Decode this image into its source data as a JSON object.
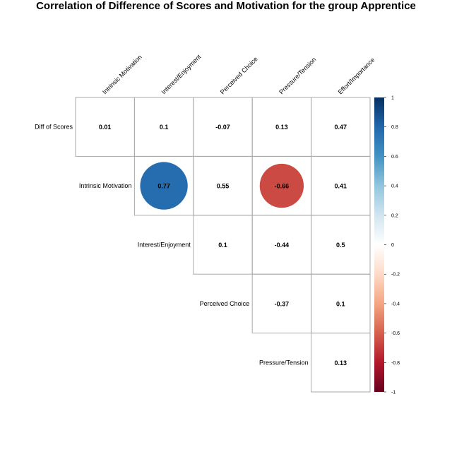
{
  "chart_data": {
    "type": "heatmap",
    "subtype": "correlation-matrix-upper-triangle",
    "title": "Correlation of Difference of Scores and Motivation for the group Apprentice",
    "column_labels": [
      "Intrinsic Motivation",
      "Interest/Enjoyment",
      "Perceived Choice",
      "Pressure/Tension",
      "Effort/Importance"
    ],
    "row_labels": [
      "Diff of Scores",
      "Intrinsic Motivation",
      "Interest/Enjoyment",
      "Perceived Choice",
      "Pressure/Tension"
    ],
    "values": [
      [
        0.01,
        0.1,
        -0.07,
        0.13,
        0.47
      ],
      [
        null,
        0.77,
        0.55,
        -0.66,
        0.41
      ],
      [
        null,
        null,
        0.1,
        -0.44,
        0.5
      ],
      [
        null,
        null,
        null,
        -0.37,
        0.1
      ],
      [
        null,
        null,
        null,
        null,
        0.13
      ]
    ],
    "value_labels": [
      [
        "0.01",
        "0.1",
        "-0.07",
        "0.13",
        "0.47"
      ],
      [
        null,
        "0.77",
        "0.55",
        "-0.66",
        "0.41"
      ],
      [
        null,
        null,
        "0.1",
        "-0.44",
        "0.5"
      ],
      [
        null,
        null,
        null,
        "-0.37",
        "0.1"
      ],
      [
        null,
        null,
        null,
        null,
        "0.13"
      ]
    ],
    "circle_shown_when_abs_at_least": 0.6,
    "colorbar": {
      "range": [
        -1,
        1
      ],
      "ticks": [
        "1",
        "0.8",
        "0.6",
        "0.4",
        "0.2",
        "0",
        "-0.2",
        "-0.4",
        "-0.6",
        "-0.8",
        "-1"
      ],
      "colors": [
        "#67001F",
        "#B2182B",
        "#D6604D",
        "#F4A582",
        "#FDDBC7",
        "#FFFFFF",
        "#D1E5F0",
        "#92C5DE",
        "#4393C3",
        "#2166AC",
        "#053061"
      ]
    },
    "grid_color": "#AAAAAA"
  }
}
